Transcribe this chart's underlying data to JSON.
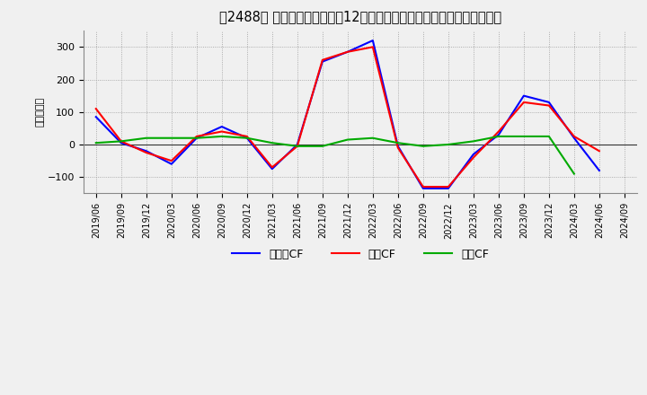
{
  "title": "　2488、 キャッシュフローの12か月移動合計の対前年同期増減額の推移",
  "title_bracket": "　2488、",
  "title_main": "キャッシュフローの12か月移動合計の対前年同期増減額の推移",
  "ylabel": "（百万円）",
  "background_color": "#f0f0f0",
  "plot_bg_color": "#f0f0f0",
  "grid_color": "#999999",
  "x_labels": [
    "2019/06",
    "2019/09",
    "2019/12",
    "2020/03",
    "2020/06",
    "2020/09",
    "2020/12",
    "2021/03",
    "2021/06",
    "2021/09",
    "2021/12",
    "2022/03",
    "2022/06",
    "2022/09",
    "2022/12",
    "2023/03",
    "2023/06",
    "2023/09",
    "2023/12",
    "2024/03",
    "2024/06",
    "2024/09"
  ],
  "eigyo_cf": [
    110,
    10,
    -25,
    -50,
    25,
    40,
    25,
    -70,
    -5,
    260,
    285,
    300,
    -10,
    -130,
    -130,
    -40,
    40,
    130,
    120,
    25,
    -20,
    null
  ],
  "toshi_cf": [
    5,
    10,
    20,
    20,
    20,
    25,
    20,
    5,
    -5,
    -5,
    15,
    20,
    5,
    -5,
    0,
    10,
    25,
    25,
    25,
    -90,
    null,
    null
  ],
  "free_cf": [
    85,
    5,
    -20,
    -60,
    20,
    55,
    20,
    -75,
    0,
    255,
    285,
    320,
    -5,
    -135,
    -135,
    -30,
    30,
    150,
    130,
    20,
    -80,
    null
  ],
  "eigyo_color": "#ff0000",
  "toshi_color": "#00aa00",
  "free_color": "#0000ff",
  "ylim": [
    -150,
    350
  ],
  "yticks": [
    -100,
    0,
    100,
    200,
    300
  ],
  "legend_eigyo": "営業CF",
  "legend_toshi": "投資CF",
  "legend_free": "フリーCF"
}
